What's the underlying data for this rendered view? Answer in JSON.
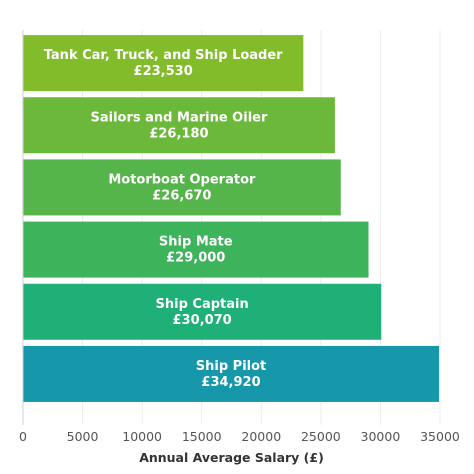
{
  "chart_data": {
    "type": "bar",
    "orientation": "horizontal",
    "title": "",
    "xlabel": "Annual Average Salary (£)",
    "ylabel": "",
    "xlim": [
      0,
      35000
    ],
    "xticks": [
      0,
      5000,
      10000,
      15000,
      20000,
      25000,
      30000,
      35000
    ],
    "grid": true,
    "legend": "none",
    "bars": [
      {
        "category": "Tank Car, Truck, and Ship Loader",
        "value": 23530,
        "value_label": "£23,530",
        "color": "#83bc2a"
      },
      {
        "category": "Sailors and Marine Oiler",
        "value": 26180,
        "value_label": "£26,180",
        "color": "#6cb83a"
      },
      {
        "category": "Motorboat Operator",
        "value": 26670,
        "value_label": "£26,670",
        "color": "#55b44a"
      },
      {
        "category": "Ship Mate",
        "value": 29000,
        "value_label": "£29,000",
        "color": "#3db35c"
      },
      {
        "category": "Ship Captain",
        "value": 30070,
        "value_label": "£30,070",
        "color": "#1fb077"
      },
      {
        "category": "Ship Pilot",
        "value": 34920,
        "value_label": "£34,920",
        "color": "#1698aa"
      }
    ]
  }
}
